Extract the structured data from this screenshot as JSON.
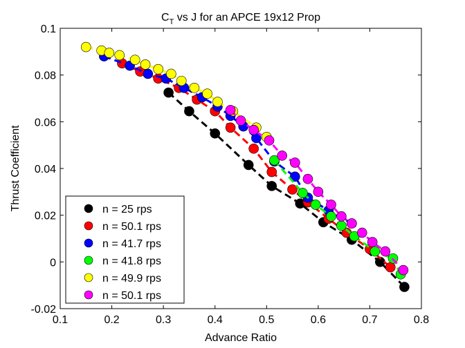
{
  "chart_data": {
    "type": "scatter",
    "title_main": "C",
    "title_sub": "T",
    "title_rest": " vs J for an APCE 19x12 Prop",
    "xlabel": "Advance Ratio",
    "ylabel": "Thrust Coefficient",
    "xlim": [
      0.1,
      0.8
    ],
    "ylim": [
      -0.02,
      0.1
    ],
    "xticks": [
      "0.1",
      "0.2",
      "0.3",
      "0.4",
      "0.5",
      "0.6",
      "0.7",
      "0.8"
    ],
    "yticks": [
      "-0.02",
      "0",
      "0.02",
      "0.04",
      "0.06",
      "0.08",
      "0.1"
    ],
    "grid": false,
    "legend_position": "bottom-left",
    "series": [
      {
        "name": "n = 25 rps",
        "color": "#000000",
        "x": [
          0.31,
          0.35,
          0.4,
          0.465,
          0.51,
          0.565,
          0.61,
          0.665,
          0.72,
          0.767
        ],
        "y": [
          0.0725,
          0.0645,
          0.055,
          0.0415,
          0.0325,
          0.025,
          0.017,
          0.0095,
          0.0,
          -0.0107
        ]
      },
      {
        "name": "n = 50.1 rps",
        "color": "#ff0000",
        "x": [
          0.22,
          0.255,
          0.29,
          0.33,
          0.365,
          0.4,
          0.43,
          0.475,
          0.51,
          0.55,
          0.58,
          0.62,
          0.655,
          0.7,
          0.74
        ],
        "y": [
          0.085,
          0.0815,
          0.0785,
          0.0745,
          0.0695,
          0.0645,
          0.0575,
          0.0485,
          0.0385,
          0.031,
          0.0255,
          0.0185,
          0.0125,
          0.0055,
          -0.0023
        ]
      },
      {
        "name": "n = 41.7 rps",
        "color": "#0000ff",
        "x": [
          0.185,
          0.235,
          0.27,
          0.305,
          0.34,
          0.375,
          0.405,
          0.43,
          0.455,
          0.48,
          0.515,
          0.555,
          0.58,
          0.62,
          0.665
        ],
        "y": [
          0.088,
          0.084,
          0.0805,
          0.0785,
          0.0745,
          0.0705,
          0.0665,
          0.0625,
          0.058,
          0.053,
          0.043,
          0.0365,
          0.0275,
          0.022,
          0.0165
        ]
      },
      {
        "name": "n = 41.8 rps",
        "color": "#00ff00",
        "x": [
          0.515,
          0.57,
          0.595,
          0.625,
          0.645,
          0.67,
          0.71,
          0.745,
          0.76
        ],
        "y": [
          0.0435,
          0.0295,
          0.0245,
          0.0195,
          0.0155,
          0.011,
          0.0045,
          0.0015,
          -0.0053
        ]
      },
      {
        "name": "n = 49.9 rps",
        "color": "#ffff00",
        "x": [
          0.15,
          0.18,
          0.195,
          0.215,
          0.245,
          0.265,
          0.29,
          0.315,
          0.335,
          0.36,
          0.385,
          0.405,
          0.435,
          0.48,
          0.5
        ],
        "y": [
          0.092,
          0.0905,
          0.0895,
          0.0885,
          0.0865,
          0.0845,
          0.0825,
          0.0805,
          0.0775,
          0.0745,
          0.072,
          0.0685,
          0.0645,
          0.0575,
          0.0535
        ]
      },
      {
        "name": "n = 50.1 rps",
        "color": "#ff00ff",
        "x": [
          0.43,
          0.45,
          0.475,
          0.505,
          0.53,
          0.555,
          0.58,
          0.6,
          0.625,
          0.645,
          0.665,
          0.685,
          0.705,
          0.73,
          0.765
        ],
        "y": [
          0.065,
          0.0605,
          0.0565,
          0.052,
          0.0455,
          0.0425,
          0.0355,
          0.03,
          0.0245,
          0.0195,
          0.0165,
          0.0125,
          0.0085,
          0.0045,
          -0.0035
        ]
      }
    ]
  }
}
